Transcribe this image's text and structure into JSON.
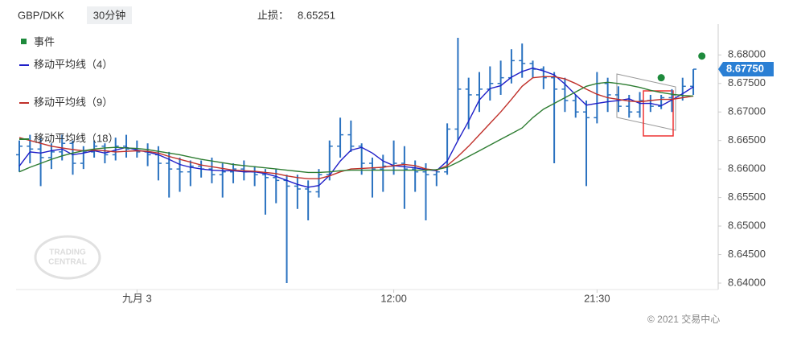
{
  "chart_data": {
    "type": "ohlc",
    "symbol": "GBP/DKK",
    "interval": "30分钟",
    "stop_loss_label": "止损：",
    "stop_loss": 8.65251,
    "watermark": [
      "TRADING",
      "CENTRAL"
    ],
    "copyright": "© 2021 交易中心",
    "bar_color": "#2a72c0",
    "current_price": {
      "value": 8.6775,
      "label": "8.67750"
    },
    "xlim": [
      -0.3,
      65.1
    ],
    "xticks": [
      {
        "value": 11,
        "label": "九月 3"
      },
      {
        "value": 35,
        "label": "12:00"
      },
      {
        "value": 54,
        "label": "21:30"
      }
    ],
    "ylim": [
      8.64,
      8.6854
    ],
    "yticks": [
      {
        "value": 8.64,
        "label": "8.64000"
      },
      {
        "value": 8.645,
        "label": "8.64500"
      },
      {
        "value": 8.65,
        "label": "8.65000"
      },
      {
        "value": 8.655,
        "label": "8.65500"
      },
      {
        "value": 8.66,
        "label": "8.66000"
      },
      {
        "value": 8.665,
        "label": "8.66500"
      },
      {
        "value": 8.67,
        "label": "8.67000"
      },
      {
        "value": 8.675,
        "label": "8.67500"
      },
      {
        "value": 8.68,
        "label": "8.68000"
      }
    ],
    "ohlc": {
      "open": [
        8.6625,
        8.664,
        8.6635,
        8.662,
        8.663,
        8.6645,
        8.661,
        8.663,
        8.664,
        8.6625,
        8.664,
        8.6635,
        8.663,
        8.6625,
        8.661,
        8.66,
        8.6595,
        8.6605,
        8.66,
        8.659,
        8.6595,
        8.66,
        8.6595,
        8.659,
        8.6585,
        8.658,
        8.657,
        8.6565,
        8.656,
        8.659,
        8.664,
        8.666,
        8.664,
        8.661,
        8.66,
        8.6605,
        8.661,
        8.66,
        8.6595,
        8.659,
        8.6595,
        8.667,
        8.674,
        8.673,
        8.674,
        8.675,
        8.676,
        8.679,
        8.6785,
        8.6775,
        8.676,
        8.674,
        8.672,
        8.67,
        8.669,
        8.675,
        8.673,
        8.671,
        8.67,
        8.672,
        8.671,
        8.6725,
        8.673,
        8.6745
      ],
      "high": [
        8.665,
        8.666,
        8.6655,
        8.6645,
        8.666,
        8.665,
        8.664,
        8.665,
        8.6645,
        8.6655,
        8.666,
        8.665,
        8.6645,
        8.664,
        8.663,
        8.662,
        8.6615,
        8.6615,
        8.662,
        8.661,
        8.661,
        8.6615,
        8.6605,
        8.66,
        8.66,
        8.659,
        8.659,
        8.658,
        8.66,
        8.665,
        8.669,
        8.6685,
        8.6645,
        8.662,
        8.6625,
        8.665,
        8.664,
        8.6615,
        8.661,
        8.66,
        8.668,
        8.683,
        8.676,
        8.677,
        8.678,
        8.679,
        8.681,
        8.682,
        8.679,
        8.678,
        8.677,
        8.676,
        8.673,
        8.672,
        8.677,
        8.676,
        8.6745,
        8.673,
        8.6735,
        8.673,
        8.673,
        8.674,
        8.676,
        8.6775
      ],
      "low": [
        8.6595,
        8.661,
        8.657,
        8.66,
        8.6615,
        8.659,
        8.66,
        8.662,
        8.661,
        8.6615,
        8.662,
        8.662,
        8.6605,
        8.658,
        8.655,
        8.656,
        8.657,
        8.6585,
        8.6575,
        8.655,
        8.6575,
        8.658,
        8.657,
        8.652,
        8.654,
        8.64,
        8.653,
        8.651,
        8.655,
        8.658,
        8.662,
        8.663,
        8.659,
        8.655,
        8.656,
        8.659,
        8.653,
        8.656,
        8.651,
        8.657,
        8.659,
        8.665,
        8.667,
        8.67,
        8.672,
        8.673,
        8.675,
        8.676,
        8.676,
        8.674,
        8.661,
        8.67,
        8.669,
        8.657,
        8.668,
        8.67,
        8.67,
        8.669,
        8.669,
        8.67,
        8.6705,
        8.67,
        8.672,
        8.673
      ],
      "close": [
        8.664,
        8.6635,
        8.662,
        8.663,
        8.6645,
        8.661,
        8.663,
        8.664,
        8.6625,
        8.664,
        8.6635,
        8.663,
        8.6625,
        8.661,
        8.66,
        8.6595,
        8.6605,
        8.66,
        8.659,
        8.6595,
        8.66,
        8.6595,
        8.659,
        8.6585,
        8.658,
        8.657,
        8.6565,
        8.656,
        8.659,
        8.664,
        8.666,
        8.664,
        8.661,
        8.66,
        8.6605,
        8.661,
        8.66,
        8.6595,
        8.659,
        8.6595,
        8.667,
        8.674,
        8.673,
        8.674,
        8.675,
        8.676,
        8.679,
        8.6785,
        8.6775,
        8.676,
        8.674,
        8.672,
        8.67,
        8.669,
        8.675,
        8.673,
        8.671,
        8.67,
        8.672,
        8.671,
        8.6725,
        8.673,
        8.6745,
        8.6775
      ]
    },
    "events_label": "事件",
    "events_color": "#1e8a3c",
    "events": {
      "x": [
        60,
        63.8
      ],
      "y": [
        8.676,
        8.6798
      ]
    },
    "series": [
      {
        "name": "移动平均线（4）",
        "color": "#1f1fc8",
        "values": [
          8.6605,
          8.663,
          8.6628,
          8.6632,
          8.6635,
          8.6625,
          8.6628,
          8.6632,
          8.6628,
          8.6633,
          8.6638,
          8.6633,
          8.663,
          8.6625,
          8.6617,
          8.6608,
          8.6603,
          8.66,
          8.6598,
          8.6597,
          8.6597,
          8.6595,
          8.6595,
          8.6592,
          8.6587,
          8.658,
          8.6573,
          8.6568,
          8.6571,
          8.6589,
          8.6614,
          8.6633,
          8.6638,
          8.6628,
          8.6614,
          8.6606,
          8.6604,
          8.6602,
          8.6599,
          8.6597,
          8.6614,
          8.665,
          8.6684,
          8.6721,
          8.6741,
          8.6746,
          8.6761,
          8.6771,
          8.6777,
          8.6772,
          8.6765,
          8.6749,
          8.673,
          8.6712,
          8.6715,
          8.6718,
          8.672,
          8.6723,
          8.6715,
          8.6715,
          8.6711,
          8.6721,
          8.6732,
          8.6744
        ]
      },
      {
        "name": "移动平均线（9）",
        "color": "#c0302a",
        "values": [
          8.6655,
          8.665,
          8.6645,
          8.664,
          8.6637,
          8.6634,
          8.6632,
          8.6633,
          8.6632,
          8.663,
          8.6631,
          8.6632,
          8.6631,
          8.6628,
          8.6622,
          8.6617,
          8.6612,
          8.6607,
          8.6604,
          8.6601,
          8.6598,
          8.6597,
          8.6596,
          8.6594,
          8.6592,
          8.6588,
          8.6585,
          8.6583,
          8.6583,
          8.6588,
          8.6595,
          8.66,
          8.6601,
          8.6602,
          8.6603,
          8.6606,
          8.6608,
          8.6606,
          8.66,
          8.6598,
          8.6606,
          8.6622,
          8.664,
          8.666,
          8.668,
          8.67,
          8.6722,
          8.6745,
          8.676,
          8.6762,
          8.6762,
          8.6758,
          8.675,
          8.674,
          8.6731,
          8.6725,
          8.6722,
          8.6719,
          8.6718,
          8.672,
          8.6722,
          8.6722,
          8.6725,
          8.6728
        ]
      },
      {
        "name": "移动平均线（18）",
        "color": "#2e7d32",
        "values": [
          8.6595,
          8.6603,
          8.661,
          8.6617,
          8.6623,
          8.6628,
          8.6632,
          8.6635,
          8.6637,
          8.6638,
          8.6637,
          8.6636,
          8.6634,
          8.6631,
          8.6628,
          8.6625,
          8.6621,
          8.6617,
          8.6614,
          8.6611,
          8.6608,
          8.6606,
          8.6604,
          8.6602,
          8.66,
          8.6598,
          8.6596,
          8.6594,
          8.6594,
          8.6595,
          8.6597,
          8.6598,
          8.6598,
          8.6598,
          8.6598,
          8.6598,
          8.6598,
          8.6598,
          8.6598,
          8.6599,
          8.6603,
          8.6612,
          8.6622,
          8.6632,
          8.6642,
          8.6652,
          8.6662,
          8.6672,
          8.669,
          8.6705,
          8.6715,
          8.6725,
          8.6735,
          8.6745,
          8.675,
          8.6752,
          8.675,
          8.6747,
          8.6743,
          8.6738,
          8.6734,
          8.6731,
          8.6729,
          8.6728
        ]
      }
    ]
  }
}
